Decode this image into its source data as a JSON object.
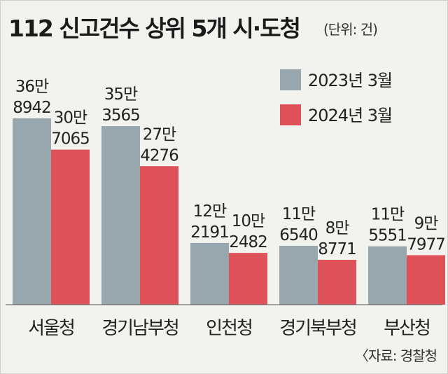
{
  "title": "112 신고건수 상위 5개 시·도청",
  "unit_note": "(단위: 건)",
  "source": "〈자료: 경찰청",
  "colors": {
    "series_2023": "#98a7ad",
    "series_2024": "#e0525a",
    "background": "#f2f2ef",
    "baseline": "#555555"
  },
  "chart_data": {
    "type": "bar",
    "categories": [
      "서울청",
      "경기남부청",
      "인천청",
      "경기북부청",
      "부산청"
    ],
    "series": [
      {
        "name": "2023년 3월",
        "values": [
          368942,
          353565,
          122191,
          116540,
          115551
        ],
        "labels": [
          [
            "36만",
            "8942"
          ],
          [
            "35만",
            "3565"
          ],
          [
            "12만",
            "2191"
          ],
          [
            "11만",
            "6540"
          ],
          [
            "11만",
            "5551"
          ]
        ]
      },
      {
        "name": "2024년 3월",
        "values": [
          307065,
          274276,
          102482,
          88771,
          97977
        ],
        "labels": [
          [
            "30만",
            "7065"
          ],
          [
            "27만",
            "4276"
          ],
          [
            "10만",
            "2482"
          ],
          [
            "8만",
            "8771"
          ],
          [
            "9만",
            "7977"
          ]
        ]
      }
    ],
    "ylim": [
      0,
      400000
    ],
    "grid": false,
    "legend_position": "top-right"
  }
}
